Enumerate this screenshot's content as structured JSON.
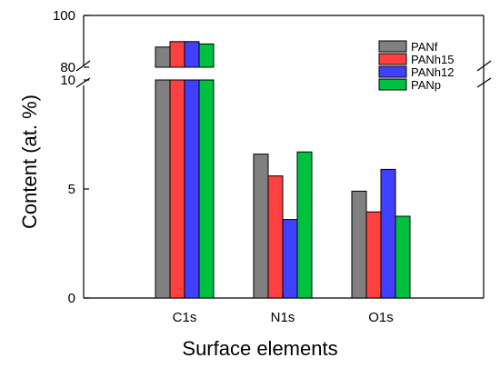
{
  "chart_data": {
    "type": "bar",
    "title": "",
    "xlabel": "Surface elements",
    "ylabel": "Content (at. %)",
    "categories": [
      "C1s",
      "N1s",
      "O1s"
    ],
    "y_axis_break": {
      "lower_range": [
        0,
        10
      ],
      "upper_range": [
        80,
        100
      ]
    },
    "lower_ticks": [
      "0",
      "5",
      "10"
    ],
    "upper_ticks": [
      "80",
      "100"
    ],
    "legend_position": "top-right",
    "series": [
      {
        "name": "PANf",
        "color": "#808080",
        "values": [
          87.8,
          6.6,
          4.9
        ]
      },
      {
        "name": "PANh15",
        "color": "#ff4040",
        "values": [
          89.9,
          5.6,
          3.95
        ]
      },
      {
        "name": "PANh12",
        "color": "#4040ff",
        "values": [
          89.9,
          3.6,
          5.9
        ]
      },
      {
        "name": "PANp",
        "color": "#00c040",
        "values": [
          89.0,
          6.7,
          3.75
        ]
      }
    ]
  }
}
